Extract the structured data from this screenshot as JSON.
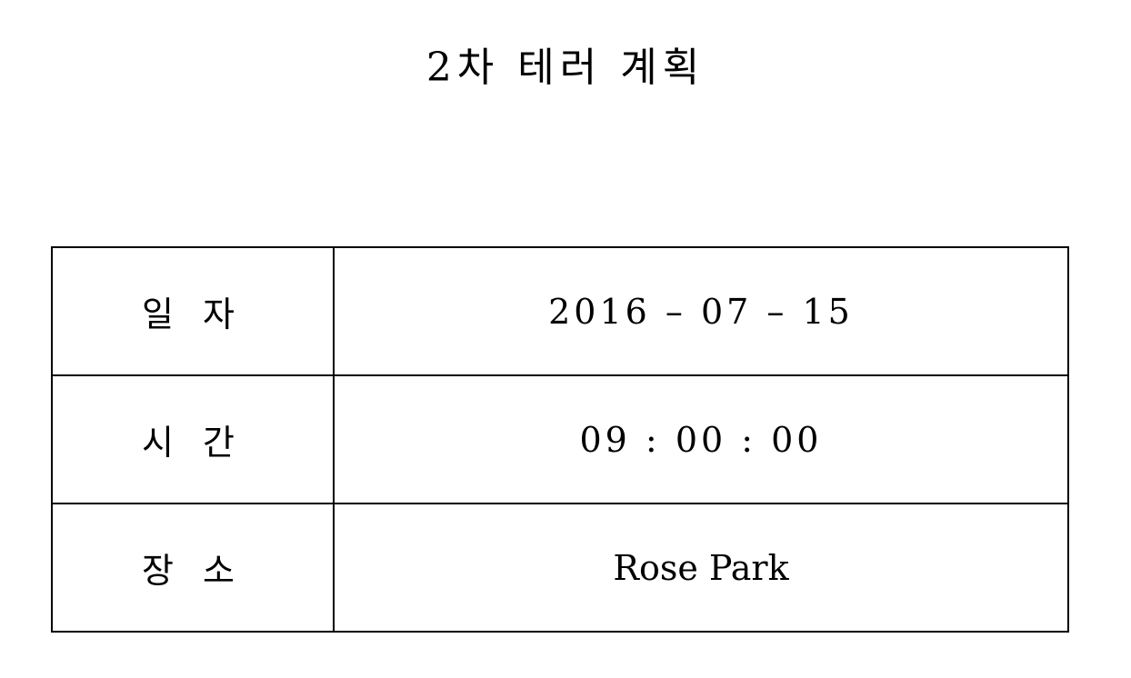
{
  "document": {
    "title": "2차 테러 계획"
  },
  "rows": [
    {
      "label": "일 자",
      "value": "2016 – 07 – 15"
    },
    {
      "label": "시 간",
      "value": "09 : 00 : 00"
    },
    {
      "label": "장 소",
      "value": "Rose Park"
    }
  ]
}
